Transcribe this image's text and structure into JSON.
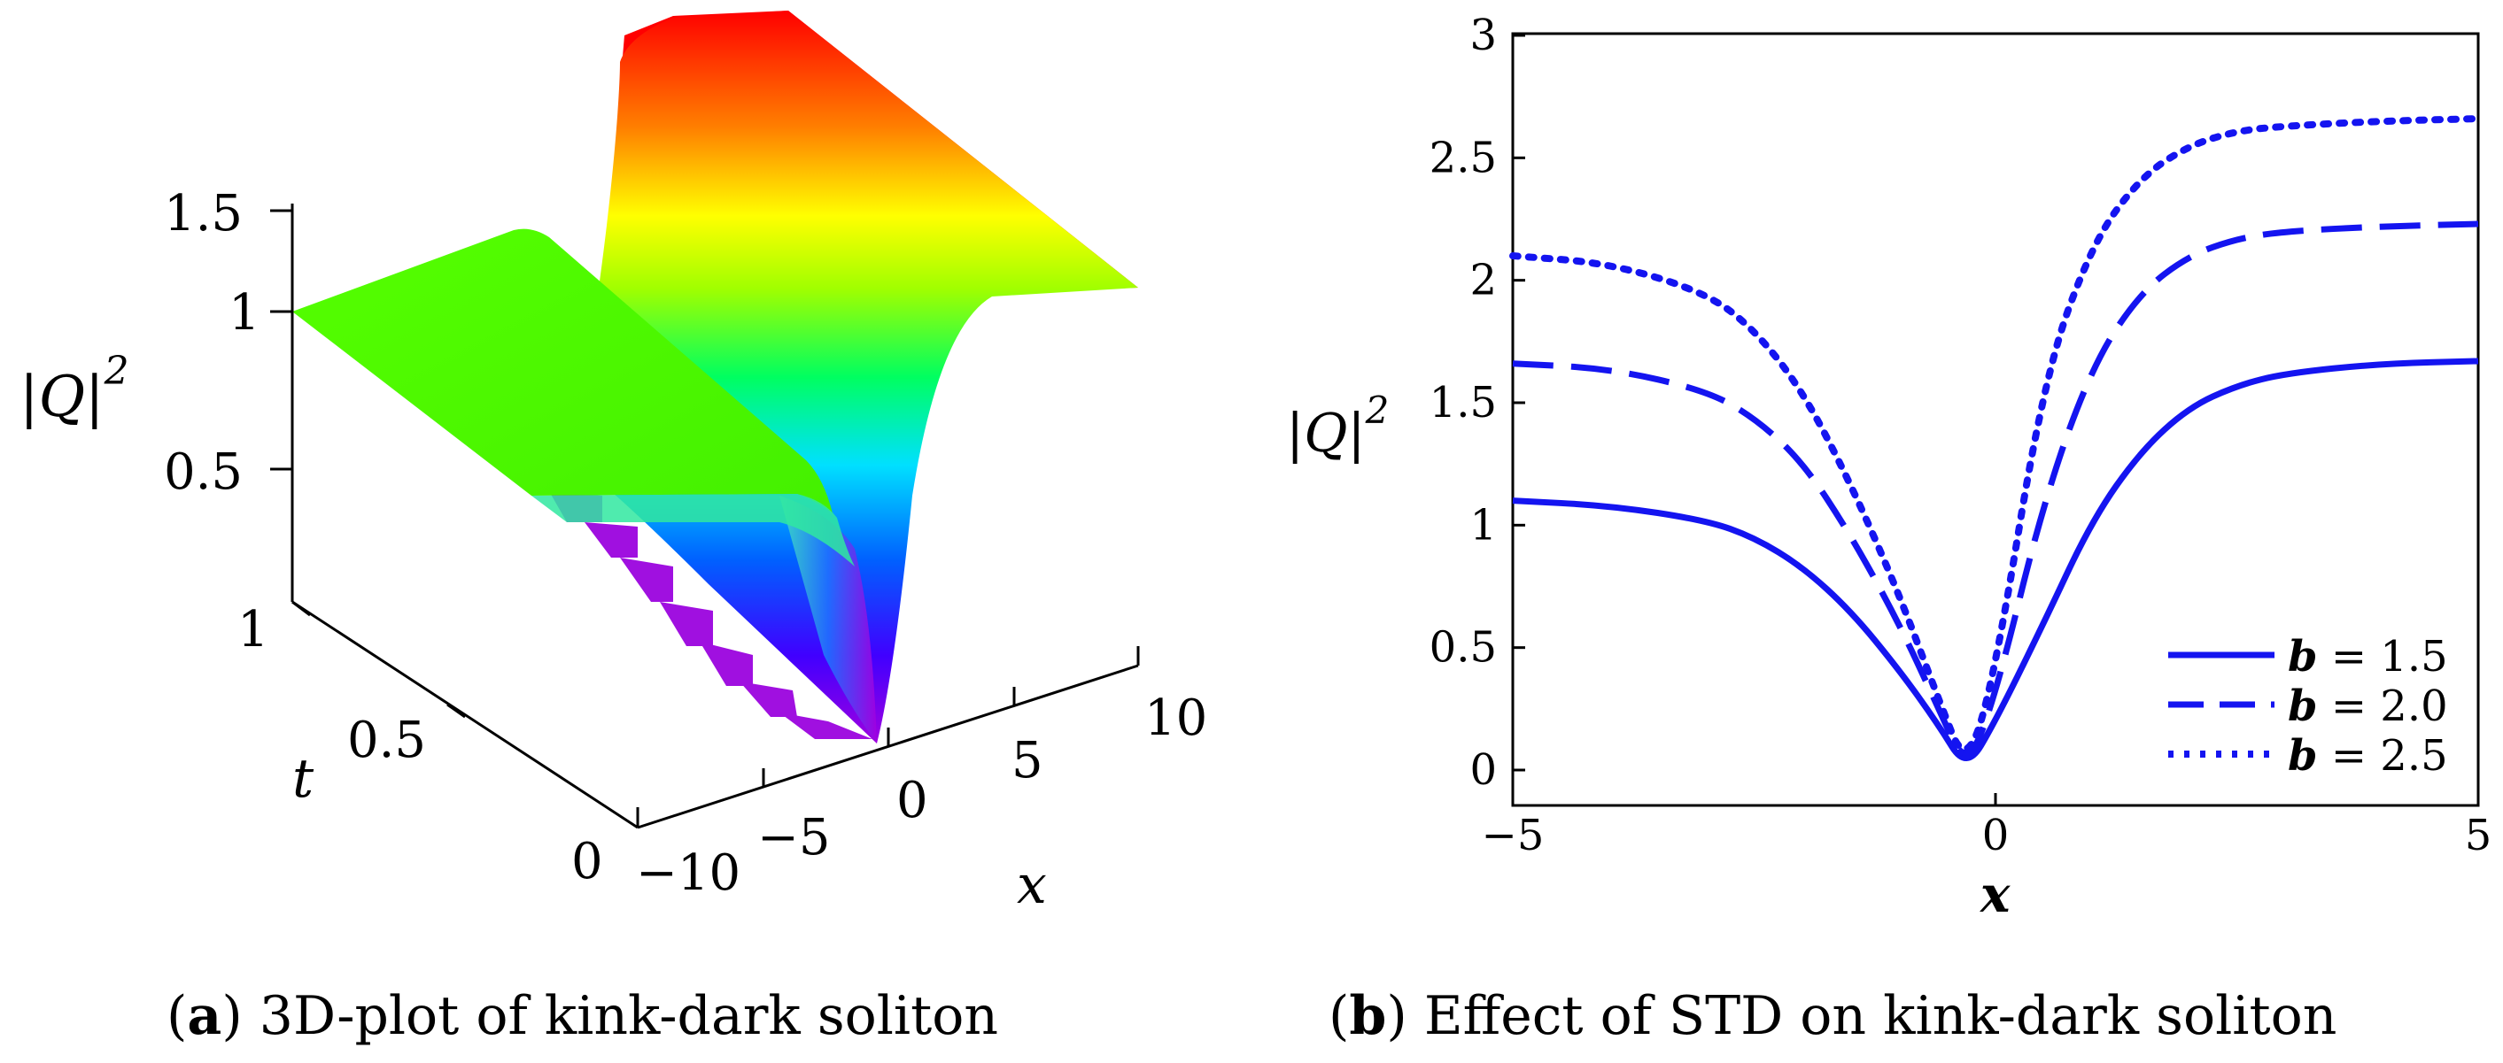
{
  "figure": {
    "panel_a": {
      "letter": "a",
      "caption": "3D-plot of kink-dark soliton"
    },
    "panel_b": {
      "letter": "b",
      "caption": "Effect of STD on kink-dark soliton"
    }
  },
  "chart_data": [
    {
      "type": "surface3d",
      "title": "",
      "zlabel": "|Q|",
      "zlabel_sup": "2",
      "xlabel": "x",
      "ylabel": "t",
      "x_ticks": [
        "−10",
        "−5",
        "0",
        "5",
        "10"
      ],
      "t_ticks": [
        "0",
        "0.5",
        "1"
      ],
      "z_ticks": [
        "0.5",
        "1",
        "1.5"
      ],
      "xlim": [
        -10,
        10
      ],
      "tlim": [
        0,
        1
      ],
      "zlim": [
        0,
        1.7
      ],
      "surface": {
        "left_plateau": 1.1,
        "right_plateau": 1.67,
        "dip_min": 0.0,
        "colormap": "hue rainbow (violet low → red high)"
      }
    },
    {
      "type": "line",
      "title": "",
      "xlabel": "x",
      "ylabel": "|Q|",
      "ylabel_sup": "2",
      "xlim": [
        -5,
        5
      ],
      "ylim": [
        0,
        3
      ],
      "x_ticks": [
        "−5",
        "0",
        "5"
      ],
      "y_ticks": [
        "0",
        "0.5",
        "1",
        "1.5",
        "2",
        "2.5",
        "3"
      ],
      "color": "#1414f0",
      "legend_position": "bottom-right",
      "series": [
        {
          "name": "b = 1.5",
          "b": "b",
          "val": "1.5",
          "style": "solid",
          "x": [
            -5,
            -4,
            -3,
            -2.5,
            -2,
            -1.5,
            -1,
            -0.6,
            -0.3,
            0,
            0.5,
            1,
            1.5,
            2,
            2.5,
            3,
            4,
            5
          ],
          "y": [
            1.1,
            1.08,
            1.02,
            0.95,
            0.83,
            0.65,
            0.41,
            0.19,
            0.0,
            0.2,
            0.6,
            1.02,
            1.3,
            1.48,
            1.57,
            1.62,
            1.66,
            1.67
          ]
        },
        {
          "name": "b = 2.0",
          "b": "b",
          "val": "2.0",
          "style": "dashed",
          "x": [
            -5,
            -4,
            -3,
            -2.5,
            -2,
            -1.5,
            -1,
            -0.6,
            -0.3,
            0,
            0.5,
            1,
            1.5,
            2,
            2.5,
            3,
            4,
            5
          ],
          "y": [
            1.66,
            1.64,
            1.55,
            1.44,
            1.26,
            0.96,
            0.6,
            0.26,
            0.0,
            0.3,
            1.1,
            1.65,
            1.95,
            2.1,
            2.17,
            2.2,
            2.22,
            2.23
          ]
        },
        {
          "name": "b = 2.5",
          "b": "b",
          "val": "2.5",
          "style": "dotted",
          "x": [
            -5,
            -4,
            -3,
            -2.5,
            -2,
            -1.5,
            -1,
            -0.6,
            -0.3,
            0,
            0.5,
            1,
            1.5,
            2,
            2.5,
            3,
            4,
            5
          ],
          "y": [
            2.1,
            2.07,
            1.95,
            1.8,
            1.55,
            1.17,
            0.72,
            0.3,
            0.0,
            0.4,
            1.6,
            2.15,
            2.42,
            2.55,
            2.61,
            2.63,
            2.65,
            2.66
          ]
        }
      ]
    }
  ]
}
